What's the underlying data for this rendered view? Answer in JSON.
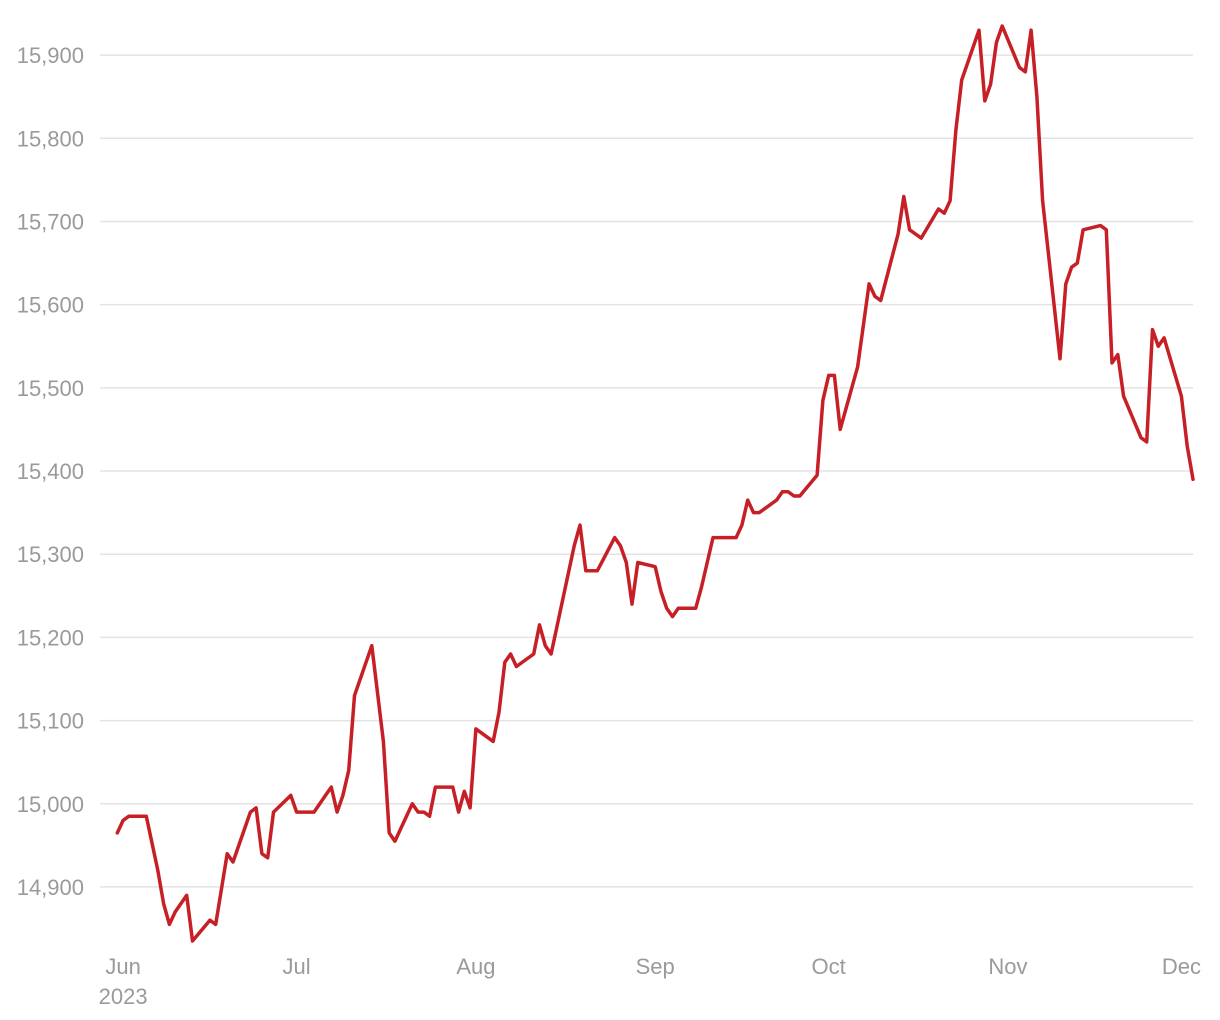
{
  "chart_data": {
    "type": "line",
    "title": "",
    "xlabel": "",
    "ylabel": "",
    "ylim": [
      14835,
      15935
    ],
    "grid": true,
    "legend": "none",
    "color": "#c62026",
    "y_ticks": [
      {
        "value": 14900,
        "label": "14,900"
      },
      {
        "value": 15000,
        "label": "15,000"
      },
      {
        "value": 15100,
        "label": "15,100"
      },
      {
        "value": 15200,
        "label": "15,200"
      },
      {
        "value": 15300,
        "label": "15,300"
      },
      {
        "value": 15400,
        "label": "15,400"
      },
      {
        "value": 15500,
        "label": "15,500"
      },
      {
        "value": 15600,
        "label": "15,600"
      },
      {
        "value": 15700,
        "label": "15,700"
      },
      {
        "value": 15800,
        "label": "15,800"
      },
      {
        "value": 15900,
        "label": "15,900"
      }
    ],
    "x_ticks": [
      {
        "date": "2023-06-01",
        "label": "Jun",
        "sublabel": "2023"
      },
      {
        "date": "2023-07-01",
        "label": "Jul"
      },
      {
        "date": "2023-08-01",
        "label": "Aug"
      },
      {
        "date": "2023-09-01",
        "label": "Sep"
      },
      {
        "date": "2023-10-01",
        "label": "Oct"
      },
      {
        "date": "2023-11-01",
        "label": "Nov"
      },
      {
        "date": "2023-12-01",
        "label": "Dec"
      }
    ],
    "xlim": [
      "2023-05-28",
      "2023-12-03"
    ],
    "series": [
      {
        "points": [
          [
            "2023-05-31",
            14965
          ],
          [
            "2023-06-01",
            14980
          ],
          [
            "2023-06-02",
            14985
          ],
          [
            "2023-06-05",
            14985
          ],
          [
            "2023-06-07",
            14920
          ],
          [
            "2023-06-08",
            14880
          ],
          [
            "2023-06-09",
            14855
          ],
          [
            "2023-06-10",
            14870
          ],
          [
            "2023-06-12",
            14890
          ],
          [
            "2023-06-13",
            14835
          ],
          [
            "2023-06-16",
            14860
          ],
          [
            "2023-06-17",
            14855
          ],
          [
            "2023-06-19",
            14940
          ],
          [
            "2023-06-20",
            14930
          ],
          [
            "2023-06-23",
            14990
          ],
          [
            "2023-06-24",
            14995
          ],
          [
            "2023-06-25",
            14940
          ],
          [
            "2023-06-26",
            14935
          ],
          [
            "2023-06-27",
            14990
          ],
          [
            "2023-06-30",
            15010
          ],
          [
            "2023-07-01",
            14990
          ],
          [
            "2023-07-04",
            14990
          ],
          [
            "2023-07-06",
            15010
          ],
          [
            "2023-07-07",
            15020
          ],
          [
            "2023-07-08",
            14990
          ],
          [
            "2023-07-09",
            15010
          ],
          [
            "2023-07-10",
            15040
          ],
          [
            "2023-07-11",
            15130
          ],
          [
            "2023-07-14",
            15190
          ],
          [
            "2023-07-16",
            15075
          ],
          [
            "2023-07-17",
            14965
          ],
          [
            "2023-07-18",
            14955
          ],
          [
            "2023-07-21",
            15000
          ],
          [
            "2023-07-22",
            14990
          ],
          [
            "2023-07-23",
            14990
          ],
          [
            "2023-07-24",
            14985
          ],
          [
            "2023-07-25",
            15020
          ],
          [
            "2023-07-28",
            15020
          ],
          [
            "2023-07-29",
            14990
          ],
          [
            "2023-07-30",
            15015
          ],
          [
            "2023-07-31",
            14995
          ],
          [
            "2023-08-01",
            15090
          ],
          [
            "2023-08-04",
            15075
          ],
          [
            "2023-08-05",
            15110
          ],
          [
            "2023-08-06",
            15170
          ],
          [
            "2023-08-07",
            15180
          ],
          [
            "2023-08-08",
            15165
          ],
          [
            "2023-08-11",
            15180
          ],
          [
            "2023-08-12",
            15215
          ],
          [
            "2023-08-13",
            15190
          ],
          [
            "2023-08-14",
            15180
          ],
          [
            "2023-08-18",
            15310
          ],
          [
            "2023-08-19",
            15335
          ],
          [
            "2023-08-20",
            15280
          ],
          [
            "2023-08-22",
            15280
          ],
          [
            "2023-08-25",
            15320
          ],
          [
            "2023-08-26",
            15310
          ],
          [
            "2023-08-27",
            15290
          ],
          [
            "2023-08-28",
            15240
          ],
          [
            "2023-08-29",
            15290
          ],
          [
            "2023-09-01",
            15285
          ],
          [
            "2023-09-02",
            15255
          ],
          [
            "2023-09-03",
            15235
          ],
          [
            "2023-09-04",
            15225
          ],
          [
            "2023-09-05",
            15235
          ],
          [
            "2023-09-08",
            15235
          ],
          [
            "2023-09-09",
            15260
          ],
          [
            "2023-09-11",
            15320
          ],
          [
            "2023-09-15",
            15320
          ],
          [
            "2023-09-16",
            15335
          ],
          [
            "2023-09-17",
            15365
          ],
          [
            "2023-09-18",
            15350
          ],
          [
            "2023-09-19",
            15350
          ],
          [
            "2023-09-22",
            15365
          ],
          [
            "2023-09-23",
            15375
          ],
          [
            "2023-09-24",
            15375
          ],
          [
            "2023-09-25",
            15370
          ],
          [
            "2023-09-26",
            15370
          ],
          [
            "2023-09-29",
            15395
          ],
          [
            "2023-09-30",
            15485
          ],
          [
            "2023-10-01",
            15515
          ],
          [
            "2023-10-02",
            15515
          ],
          [
            "2023-10-03",
            15450
          ],
          [
            "2023-10-06",
            15525
          ],
          [
            "2023-10-08",
            15625
          ],
          [
            "2023-10-09",
            15610
          ],
          [
            "2023-10-10",
            15605
          ],
          [
            "2023-10-13",
            15685
          ],
          [
            "2023-10-14",
            15730
          ],
          [
            "2023-10-15",
            15690
          ],
          [
            "2023-10-17",
            15680
          ],
          [
            "2023-10-20",
            15715
          ],
          [
            "2023-10-21",
            15710
          ],
          [
            "2023-10-22",
            15725
          ],
          [
            "2023-10-23",
            15810
          ],
          [
            "2023-10-24",
            15870
          ],
          [
            "2023-10-27",
            15930
          ],
          [
            "2023-10-28",
            15845
          ],
          [
            "2023-10-29",
            15865
          ],
          [
            "2023-10-30",
            15915
          ],
          [
            "2023-10-31",
            15935
          ],
          [
            "2023-11-03",
            15885
          ],
          [
            "2023-11-04",
            15880
          ],
          [
            "2023-11-05",
            15930
          ],
          [
            "2023-11-06",
            15850
          ],
          [
            "2023-11-07",
            15725
          ],
          [
            "2023-11-10",
            15535
          ],
          [
            "2023-11-11",
            15625
          ],
          [
            "2023-11-12",
            15645
          ],
          [
            "2023-11-13",
            15650
          ],
          [
            "2023-11-14",
            15690
          ],
          [
            "2023-11-17",
            15695
          ],
          [
            "2023-11-18",
            15690
          ],
          [
            "2023-11-19",
            15530
          ],
          [
            "2023-11-20",
            15540
          ],
          [
            "2023-11-21",
            15490
          ],
          [
            "2023-11-24",
            15440
          ],
          [
            "2023-11-25",
            15435
          ],
          [
            "2023-11-26",
            15570
          ],
          [
            "2023-11-27",
            15550
          ],
          [
            "2023-11-28",
            15560
          ],
          [
            "2023-12-01",
            15490
          ],
          [
            "2023-12-02",
            15430
          ],
          [
            "2023-12-03",
            15390
          ]
        ]
      }
    ]
  }
}
